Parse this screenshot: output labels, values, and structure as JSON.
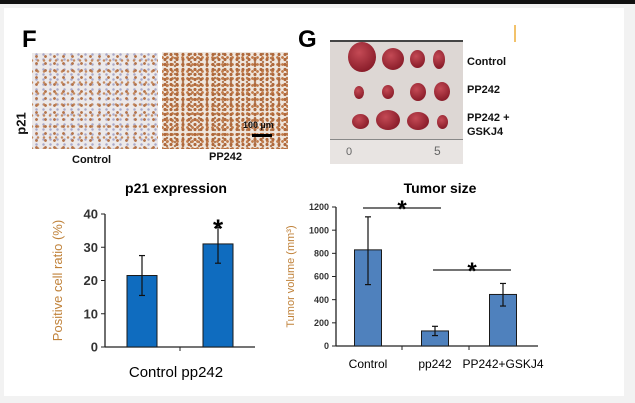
{
  "panel_f": {
    "letter": "F",
    "row_label": "p21",
    "image_labels": [
      "Control",
      "PP242"
    ],
    "scale_bar": "100 µm"
  },
  "panel_g": {
    "letter": "G",
    "row_labels": [
      "Control",
      "PP242",
      "PP242 +",
      "GSKJ4"
    ],
    "ruler_marks": [
      "0",
      "5"
    ]
  },
  "colors": {
    "bar_f": "#0f6cbf",
    "bar_g": "#4f81bd",
    "axis_f": "#c0823a",
    "axis_g": "#c0823a"
  },
  "chart_data": [
    {
      "type": "bar",
      "title": "p21 expression",
      "categories": [
        "Control",
        "pp242"
      ],
      "xlabel_text": "Control pp242",
      "values": [
        21.5,
        31
      ],
      "error_low": [
        15.5,
        25.2
      ],
      "error_high": [
        27.5,
        36
      ],
      "significance": [
        {
          "bars": [
            1
          ],
          "label": "*"
        }
      ],
      "ylabel": "Positive cell ratio (%)",
      "ylim": [
        0,
        40
      ],
      "yticks": [
        "0",
        "10",
        "20",
        "30",
        "40"
      ],
      "grid": false
    },
    {
      "type": "bar",
      "title": "Tumor size",
      "categories": [
        "Control",
        "pp242",
        "PP242+GSKJ4"
      ],
      "values": [
        830,
        130,
        445
      ],
      "error_low": [
        530,
        90,
        345
      ],
      "error_high": [
        1115,
        170,
        540
      ],
      "significance": [
        {
          "bars": [
            0,
            1
          ],
          "label": "*"
        },
        {
          "bars": [
            1,
            2
          ],
          "label": "*"
        }
      ],
      "ylabel": "Tumor volume (mm³)",
      "ylim": [
        0,
        1200
      ],
      "yticks": [
        "0",
        "200",
        "400",
        "600",
        "800",
        "1000",
        "1200"
      ],
      "grid": false
    }
  ]
}
